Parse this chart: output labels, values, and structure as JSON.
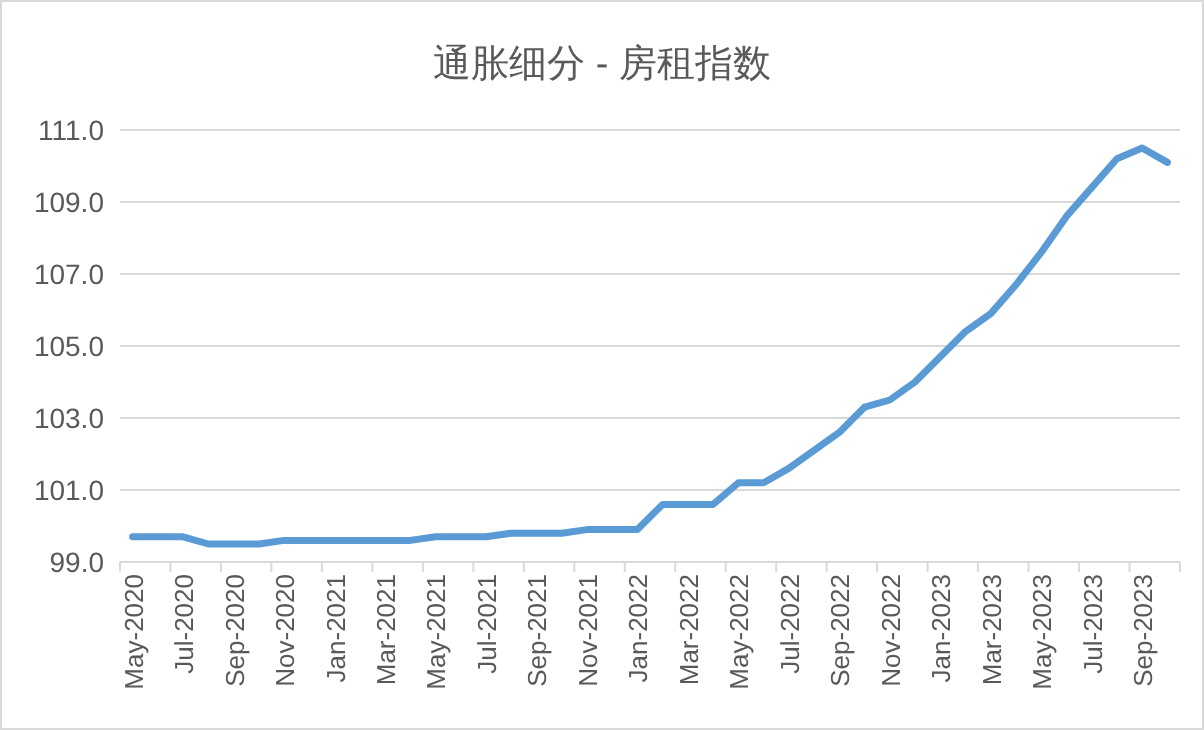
{
  "chart_data": {
    "type": "line",
    "title": "通胀细分 - 房租指数",
    "categories": [
      "May-2020",
      null,
      "Jul-2020",
      null,
      "Sep-2020",
      null,
      "Nov-2020",
      null,
      "Jan-2021",
      null,
      "Mar-2021",
      null,
      "May-2021",
      null,
      "Jul-2021",
      null,
      "Sep-2021",
      null,
      "Nov-2021",
      null,
      "Jan-2022",
      null,
      "Mar-2022",
      null,
      "May-2022",
      null,
      "Jul-2022",
      null,
      "Sep-2022",
      null,
      "Nov-2022",
      null,
      "Jan-2023",
      null,
      "Mar-2023",
      null,
      "May-2023",
      null,
      "Jul-2023",
      null,
      "Sep-2023",
      null
    ],
    "series": [
      {
        "color": "#5b9bd5",
        "values": [
          99.7,
          99.7,
          99.7,
          99.5,
          99.5,
          99.5,
          99.6,
          99.6,
          99.6,
          99.6,
          99.6,
          99.6,
          99.7,
          99.7,
          99.7,
          99.8,
          99.8,
          99.8,
          99.9,
          99.9,
          99.9,
          100.6,
          100.6,
          100.6,
          101.2,
          101.2,
          101.6,
          102.1,
          102.6,
          103.3,
          103.5,
          104.0,
          104.7,
          105.4,
          105.9,
          106.7,
          107.6,
          108.6,
          109.4,
          110.2,
          110.5,
          110.1
        ]
      }
    ],
    "ylim": [
      99,
      111
    ],
    "yticks": [
      {
        "value": 99,
        "label": "99.0"
      },
      {
        "value": 101,
        "label": "101.0"
      },
      {
        "value": 103,
        "label": "103.0"
      },
      {
        "value": 105,
        "label": "105.0"
      },
      {
        "value": 107,
        "label": "107.0"
      },
      {
        "value": 109,
        "label": "109.0"
      },
      {
        "value": 111,
        "label": "111.0"
      }
    ],
    "grid": "y",
    "marker": "none",
    "line_style": "solid"
  }
}
